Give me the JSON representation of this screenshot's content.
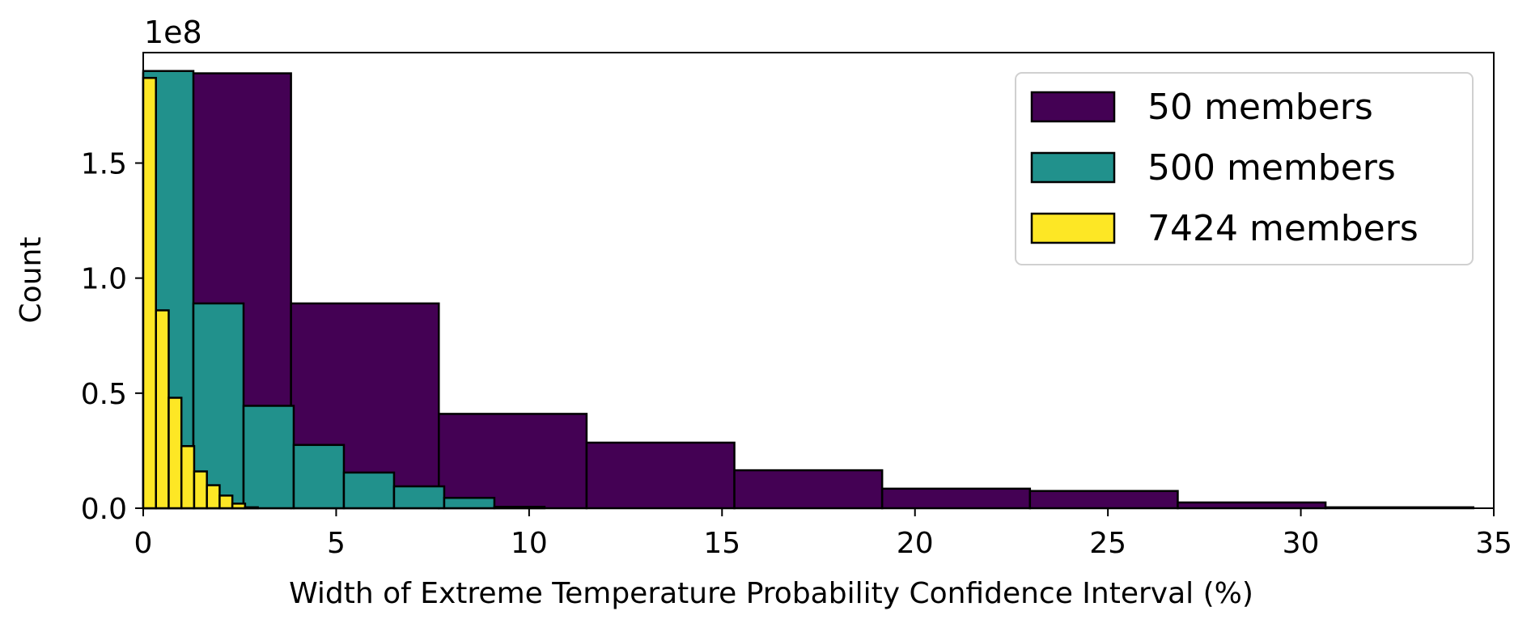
{
  "chart_data": {
    "type": "bar",
    "subtype": "overlapping-histogram",
    "title": "",
    "xlabel": "Width of Extreme Temperature Probability Confidence Interval (%)",
    "ylabel": "Count",
    "y_offset_text": "1e8",
    "y_scale_factor": 100000000,
    "xlim": [
      0,
      35
    ],
    "ylim": [
      0,
      1.98
    ],
    "x_ticks": [
      0,
      5,
      10,
      15,
      20,
      25,
      30,
      35
    ],
    "x_tick_labels": [
      "0",
      "5",
      "10",
      "15",
      "20",
      "25",
      "30",
      "35"
    ],
    "y_ticks": [
      0.0,
      0.5,
      1.0,
      1.5
    ],
    "y_tick_labels": [
      "0.0",
      "0.5",
      "1.0",
      "1.5"
    ],
    "grid": false,
    "legend_position": "top-right",
    "series": [
      {
        "name": "50 members",
        "color": "#440154",
        "bin_edges": [
          0,
          3.83,
          7.66,
          11.49,
          15.32,
          19.15,
          22.98,
          26.81,
          30.64,
          34.47
        ],
        "values": [
          1.89,
          0.89,
          0.41,
          0.285,
          0.165,
          0.085,
          0.075,
          0.025,
          0.004
        ]
      },
      {
        "name": "500 members",
        "color": "#21918c",
        "bin_edges": [
          0,
          1.3,
          2.6,
          3.9,
          5.2,
          6.5,
          7.8,
          9.1,
          10.4
        ],
        "values": [
          1.9,
          0.89,
          0.445,
          0.275,
          0.155,
          0.095,
          0.045,
          0.006
        ]
      },
      {
        "name": "7424 members",
        "color": "#fde725",
        "bin_edges": [
          0,
          0.33,
          0.66,
          0.99,
          1.32,
          1.65,
          1.98,
          2.31,
          2.64,
          2.97
        ],
        "values": [
          1.87,
          0.86,
          0.48,
          0.27,
          0.16,
          0.1,
          0.055,
          0.02,
          0.004
        ]
      }
    ]
  }
}
